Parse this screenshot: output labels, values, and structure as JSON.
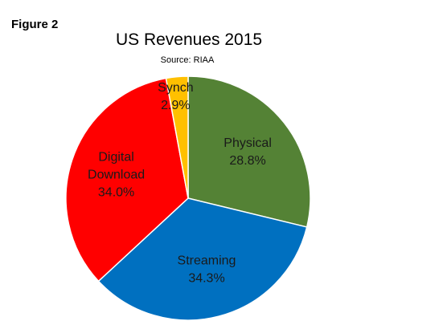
{
  "figure_label": "Figure 2",
  "chart_data": {
    "type": "pie",
    "title": "US Revenues 2015",
    "subtitle": "Source: RIAA",
    "slices": [
      {
        "name": "Physical",
        "value": 28.8,
        "label": "28.8%",
        "color": "#548235"
      },
      {
        "name": "Streaming",
        "value": 34.3,
        "label": "34.3%",
        "color": "#0070c0"
      },
      {
        "name": "Digital Download",
        "value": 34.0,
        "label": "34.0%",
        "color": "#ff0000"
      },
      {
        "name": "Synch",
        "value": 2.9,
        "label": "2.9%",
        "color": "#ffc000"
      }
    ],
    "start": "12 o'clock",
    "direction": "clockwise"
  }
}
